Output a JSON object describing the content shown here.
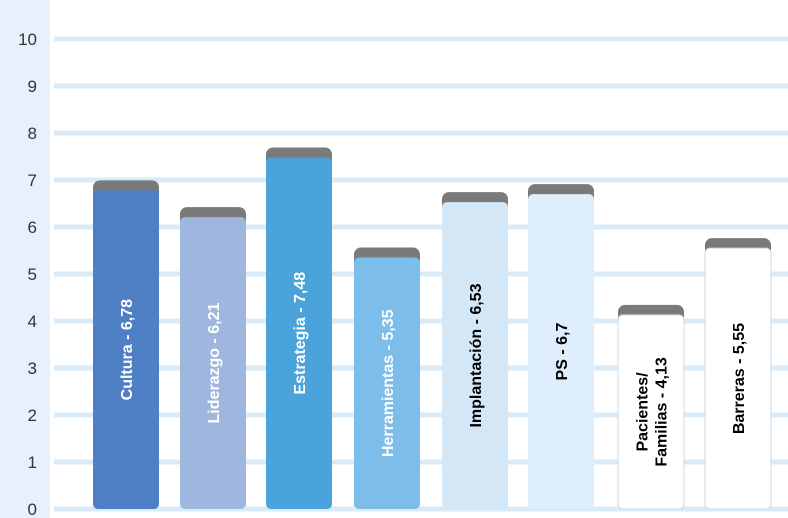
{
  "chart_data": {
    "type": "bar",
    "orientation": "vertical",
    "title": "",
    "xlabel": "",
    "ylabel": "",
    "ylim": [
      0,
      10
    ],
    "yticks": [
      "0",
      "1",
      "2",
      "3",
      "4",
      "5",
      "6",
      "7",
      "8",
      "9",
      "10"
    ],
    "grid": true,
    "legend": "none",
    "categories": [
      "Cultura",
      "Liderazgo",
      "Estrategia",
      "Herramientas",
      "Implantación",
      "PS",
      "Pacientes/ Familias",
      "Barreras"
    ],
    "values": [
      6.78,
      6.21,
      7.48,
      5.35,
      6.53,
      6.7,
      4.13,
      5.55
    ],
    "bar_labels": [
      [
        "Cultura - 6,78"
      ],
      [
        "Liderazgo - 6,21"
      ],
      [
        "Estrategia - 7,48"
      ],
      [
        "Herramientas - 5,35"
      ],
      [
        "Implantación - 6,53"
      ],
      [
        "PS - 6,7"
      ],
      [
        "Pacientes/",
        "Familias - 4,13"
      ],
      [
        "Barreras - 5,55"
      ]
    ],
    "bar_colors": [
      "#4f7fc4",
      "#9fb6df",
      "#4aa3db",
      "#7dbde9",
      "#d3e7f7",
      "#deeefc",
      "#ffffff",
      "#ffffff"
    ],
    "label_colors": [
      "#ffffff",
      "#ffffff",
      "#ffffff",
      "#ffffff",
      "#000000",
      "#000000",
      "#000000",
      "#000000"
    ],
    "colors": {
      "grid": "#d9eaf8",
      "left_band": "#e6f1fb",
      "bar_cap": "#7a7a7a"
    }
  }
}
